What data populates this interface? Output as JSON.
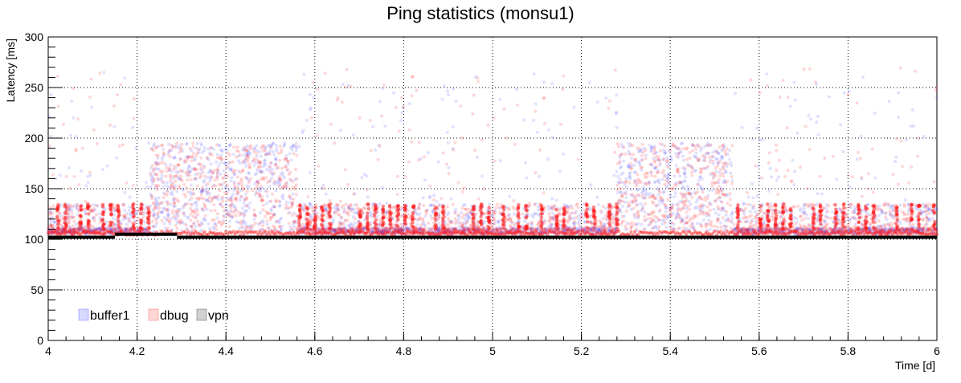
{
  "chart_data": {
    "type": "scatter",
    "title": "Ping statistics (monsu1)",
    "xlabel": "Time [d]",
    "ylabel": "Latency [ms]",
    "xlim": [
      4,
      6
    ],
    "ylim": [
      0,
      300
    ],
    "x_ticks": [
      4,
      4.2,
      4.4,
      4.6,
      4.8,
      5,
      5.2,
      5.4,
      5.6,
      5.8,
      6
    ],
    "x_tick_labels": [
      "4",
      "4.2",
      "4.4",
      "4.6",
      "4.8",
      "5",
      "5.2",
      "5.4",
      "5.6",
      "5.8",
      "6"
    ],
    "y_ticks": [
      0,
      50,
      100,
      150,
      200,
      250,
      300
    ],
    "y_tick_labels": [
      "0",
      "50",
      "100",
      "150",
      "200",
      "250",
      "300"
    ],
    "grid": true,
    "legend_position": "bottom-left",
    "series": [
      {
        "name": "buffer1",
        "color": "#2b2bff",
        "baseline_ms": 105,
        "burst_periods": [
          [
            4.23,
            4.56
          ],
          [
            5.28,
            5.54
          ]
        ],
        "burst_range_ms": [
          105,
          195
        ],
        "outlier_max_ms": 265
      },
      {
        "name": "dbug",
        "color": "#ff1f1f",
        "baseline_ms": 105,
        "burst_periods": [
          [
            4.23,
            4.56
          ],
          [
            5.28,
            5.54
          ]
        ],
        "burst_range_ms": [
          105,
          195
        ],
        "spike_range_ms": [
          110,
          135
        ],
        "outlier_max_ms": 270
      },
      {
        "name": "vpn",
        "color": "#000000",
        "segments": [
          {
            "x": [
              4.0,
              4.15
            ],
            "y": 102
          },
          {
            "x": [
              4.15,
              4.29
            ],
            "y": 105
          },
          {
            "x": [
              4.29,
              6.0
            ],
            "y": 102
          }
        ]
      }
    ]
  }
}
